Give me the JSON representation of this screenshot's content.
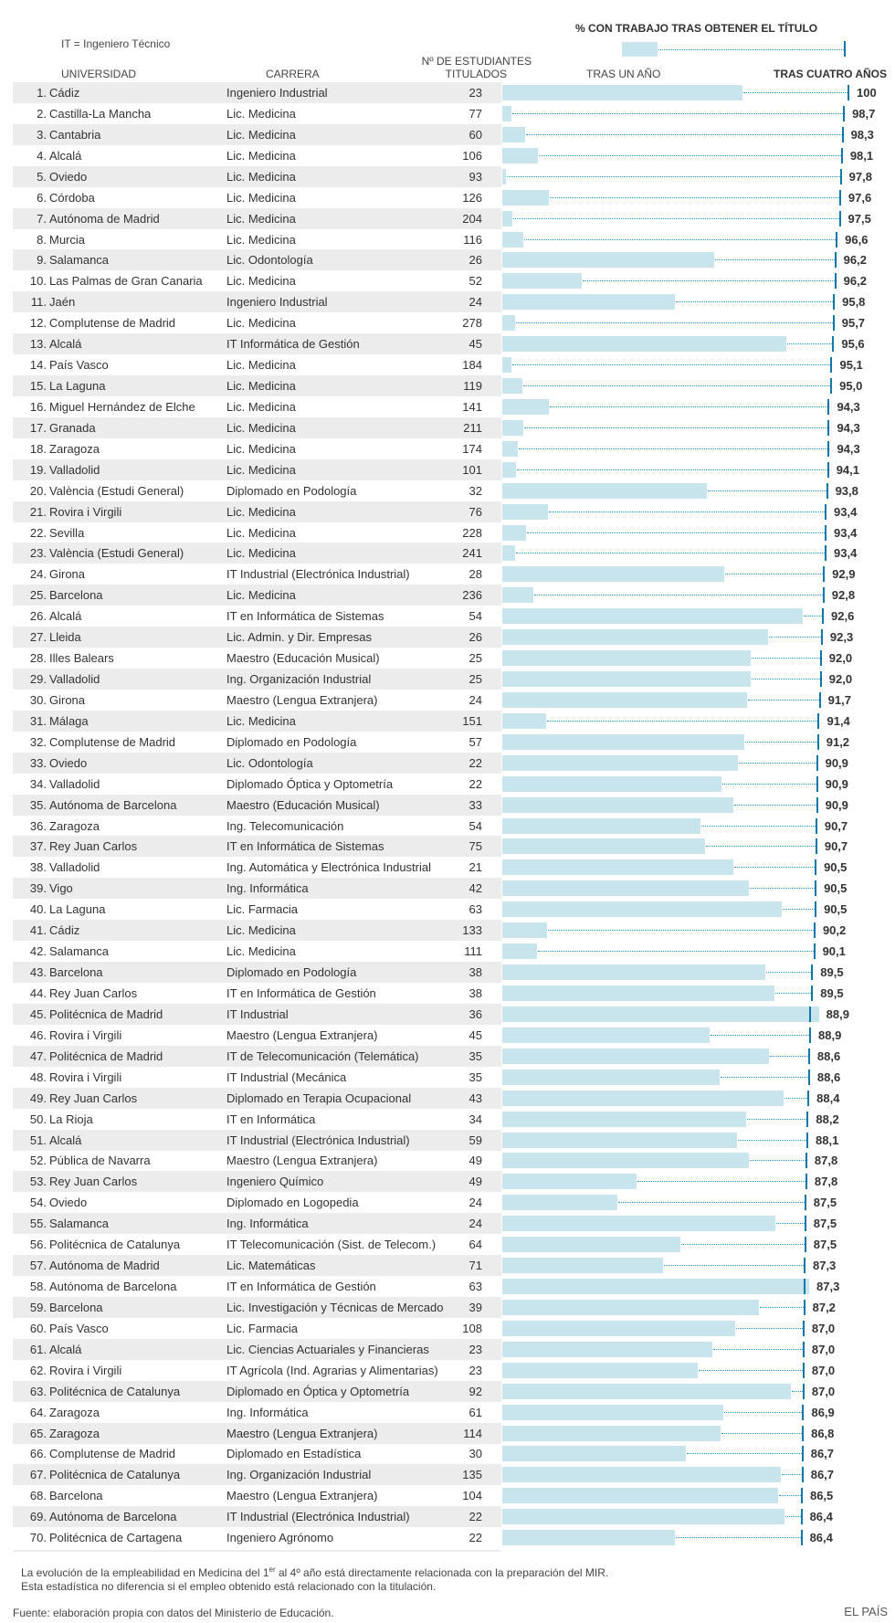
{
  "header": {
    "title": "% CON TRABAJO TRAS OBTENER EL TÍTULO",
    "legend_note": "IT = Ingeniero Técnico",
    "col_universidad": "UNIVERSIDAD",
    "col_carrera": "CARRERA",
    "col_titulados_1": "Nº DE ESTUDIANTES",
    "col_titulados_2": "TITULADOS",
    "col_un_ano": "TRAS UN AÑO",
    "col_cuatro_anos": "TRAS CUATRO AÑOS"
  },
  "colors": {
    "bar_one_year": "#c8e4ec",
    "tick_four_years": "#0f78a8",
    "dotted": "#2196c4",
    "row_band": "#ececec"
  },
  "chart_data": {
    "type": "bar",
    "xlim": [
      0,
      100
    ],
    "columns": [
      "rank",
      "universidad",
      "carrera",
      "titulados",
      "tras_un_ano",
      "tras_cuatro_anos"
    ],
    "rows": [
      [
        "1.",
        "Cádiz",
        "Ingeniero Industrial",
        "23",
        69.6,
        "100"
      ],
      [
        "2.",
        "Castilla-La Mancha",
        "Lic. Medicina",
        "77",
        2.6,
        "98,7"
      ],
      [
        "3.",
        "Cantabria",
        "Lic. Medicina",
        "60",
        6.6,
        "98,3"
      ],
      [
        "4.",
        "Alcalá",
        "Lic. Medicina",
        "106",
        10.3,
        "98,1"
      ],
      [
        "5.",
        "Oviedo",
        "Lic. Medicina",
        "93",
        1.0,
        "97,8"
      ],
      [
        "6.",
        "Córdoba",
        "Lic. Medicina",
        "126",
        13.5,
        "97,6"
      ],
      [
        "7.",
        "Autónoma de Madrid",
        "Lic. Medicina",
        "204",
        2.9,
        "97,5"
      ],
      [
        "8.",
        "Murcia",
        "Lic. Medicina",
        "116",
        6.1,
        "96,6"
      ],
      [
        "9.",
        "Salamanca",
        "Lic. Odontología",
        "26",
        61.4,
        "96,2"
      ],
      [
        "10.",
        "Las Palmas de Gran Canaria",
        "Lic. Medicina",
        "52",
        23.0,
        "96,2"
      ],
      [
        "11.",
        "Jaén",
        "Ingeniero Industrial",
        "24",
        50.0,
        "95,8"
      ],
      [
        "12.",
        "Complutense de Madrid",
        "Lic. Medicina",
        "278",
        3.7,
        "95,7"
      ],
      [
        "13.",
        "Alcalá",
        "IT Informática de Gestión",
        "45",
        82.2,
        "95,6"
      ],
      [
        "14.",
        "País Vasco",
        "Lic. Medicina",
        "184",
        2.6,
        "95,1"
      ],
      [
        "15.",
        "La Laguna",
        "Lic. Medicina",
        "119",
        5.8,
        "95,0"
      ],
      [
        "16.",
        "Miguel Hernández de Elche",
        "Lic. Medicina",
        "141",
        13.5,
        "94,3"
      ],
      [
        "17.",
        "Granada",
        "Lic. Medicina",
        "211",
        6.1,
        "94,3"
      ],
      [
        "18.",
        "Zaragoza",
        "Lic. Medicina",
        "174",
        4.6,
        "94,3"
      ],
      [
        "19.",
        "Valladolid",
        "Lic. Medicina",
        "101",
        4.0,
        "94,1"
      ],
      [
        "20.",
        "València (Estudi General)",
        "Diplomado en Podología",
        "32",
        59.3,
        "93,8"
      ],
      [
        "21.",
        "Rovira i Virgili",
        "Lic. Medicina",
        "76",
        13.2,
        "93,4"
      ],
      [
        "22.",
        "Sevilla",
        "Lic. Medicina",
        "228",
        6.9,
        "93,4"
      ],
      [
        "23.",
        "València (Estudi General)",
        "Lic. Medicina",
        "241",
        3.7,
        "93,4"
      ],
      [
        "24.",
        "Girona",
        "IT Industrial (Electrónica Industrial)",
        "28",
        64.4,
        "92,9"
      ],
      [
        "25.",
        "Barcelona",
        "Lic. Medicina",
        "236",
        8.9,
        "92,8"
      ],
      [
        "26.",
        "Alcalá",
        "IT en Informática de Sistemas",
        "54",
        87.0,
        "92,6"
      ],
      [
        "27.",
        "Lleida",
        "Lic. Admin. y Dir. Empresas",
        "26",
        76.9,
        "92,3"
      ],
      [
        "28.",
        "Illes Balears",
        "Maestro (Educación Musical)",
        "25",
        72.0,
        "92,0"
      ],
      [
        "29.",
        "Valladolid",
        "Ing. Organización Industrial",
        "25",
        72.0,
        "92,0"
      ],
      [
        "30.",
        "Girona",
        "Maestro (Lengua Extranjera)",
        "24",
        70.8,
        "91,7"
      ],
      [
        "31.",
        "Málaga",
        "Lic. Medicina",
        "151",
        12.6,
        "91,4"
      ],
      [
        "32.",
        "Complutense de Madrid",
        "Diplomado en Podología",
        "57",
        70.2,
        "91,2"
      ],
      [
        "33.",
        "Oviedo",
        "Lic. Odontología",
        "22",
        68.3,
        "90,9"
      ],
      [
        "34.",
        "Valladolid",
        "Diplomado Óptica y Optometría",
        "22",
        63.6,
        "90,9"
      ],
      [
        "35.",
        "Autónoma de Barcelona",
        "Maestro (Educación Musical)",
        "33",
        66.8,
        "90,9"
      ],
      [
        "36.",
        "Zaragoza",
        "Ing. Telecomunicación",
        "54",
        57.4,
        "90,7"
      ],
      [
        "37.",
        "Rey Juan Carlos",
        "IT en Informática de Sistemas",
        "75",
        58.7,
        "90,7"
      ],
      [
        "38.",
        "Valladolid",
        "Ing. Automática y Electrónica Industrial",
        "21",
        66.8,
        "90,5"
      ],
      [
        "39.",
        "Vigo",
        "Ing. Informática",
        "42",
        71.4,
        "90,5"
      ],
      [
        "40.",
        "La Laguna",
        "Lic. Farmacia",
        "63",
        81.0,
        "90,5"
      ],
      [
        "41.",
        "Cádiz",
        "Lic. Medicina",
        "133",
        12.9,
        "90,2"
      ],
      [
        "42.",
        "Salamanca",
        "Lic. Medicina",
        "111",
        10.0,
        "90,1"
      ],
      [
        "43.",
        "Barcelona",
        "Diplomado en Podología",
        "38",
        76.3,
        "89,5"
      ],
      [
        "44.",
        "Rey Juan Carlos",
        "IT en Informática de Gestión",
        "38",
        78.9,
        "89,5"
      ],
      [
        "45.",
        "Politécnica de Madrid",
        "IT Industrial",
        "36",
        91.7,
        "88,9"
      ],
      [
        "46.",
        "Rovira i Virgili",
        "Maestro (Lengua Extranjera)",
        "45",
        60.1,
        "88,9"
      ],
      [
        "47.",
        "Politécnica de Madrid",
        "IT de Telecomunicación (Telemática)",
        "35",
        77.2,
        "88,6"
      ],
      [
        "48.",
        "Rovira i Virgili",
        "IT Industrial (Mecánica",
        "35",
        63.0,
        "88,6"
      ],
      [
        "49.",
        "Rey Juan Carlos",
        "Diplomado en Terapia Ocupacional",
        "43",
        81.4,
        "88,4"
      ],
      [
        "50.",
        "La Rioja",
        "IT en Informática",
        "34",
        70.6,
        "88,2"
      ],
      [
        "51.",
        "Alcalá",
        "IT Industrial (Electrónica Industrial)",
        "59",
        67.9,
        "88,1"
      ],
      [
        "52.",
        "Pública de Navarra",
        "Maestro (Lengua Extranjera)",
        "49",
        71.4,
        "87,8"
      ],
      [
        "53.",
        "Rey Juan Carlos",
        "Ingeniero Químico",
        "49",
        38.8,
        "87,8"
      ],
      [
        "54.",
        "Oviedo",
        "Diplomado en Logopedia",
        "24",
        33.3,
        "87,5"
      ],
      [
        "55.",
        "Salamanca",
        "Ing. Informática",
        "24",
        79.2,
        "87,5"
      ],
      [
        "56.",
        "Politécnica de Catalunya",
        "IT Telecomunicación (Sist. de Telecom.)",
        "64",
        51.6,
        "87,5"
      ],
      [
        "57.",
        "Autónoma de Madrid",
        "Lic. Matemáticas",
        "71",
        46.5,
        "87,3"
      ],
      [
        "58.",
        "Autónoma de Barcelona",
        "IT en Informática de Gestión",
        "63",
        88.9,
        "87,3"
      ],
      [
        "59.",
        "Barcelona",
        "Lic. Investigación y Técnicas de Mercado",
        "39",
        74.3,
        "87,2"
      ],
      [
        "60.",
        "País Vasco",
        "Lic. Farmacia",
        "108",
        67.5,
        "87,0"
      ],
      [
        "61.",
        "Alcalá",
        "Lic. Ciencias Actuariales y Financieras",
        "23",
        60.8,
        "87,0"
      ],
      [
        "62.",
        "Rovira i Virgili",
        "IT Agrícola (Ind. Agrarias y Alimentarias)",
        "23",
        56.5,
        "87,0"
      ],
      [
        "63.",
        "Politécnica de Catalunya",
        "Diplomado en Óptica y Optometría",
        "92",
        83.7,
        "87,0"
      ],
      [
        "64.",
        "Zaragoza",
        "Ing. Informática",
        "61",
        63.9,
        "86,9"
      ],
      [
        "65.",
        "Zaragoza",
        "Maestro (Lengua Extranjera)",
        "114",
        63.2,
        "86,8"
      ],
      [
        "66.",
        "Complutense de Madrid",
        "Diplomado en Estadística",
        "30",
        53.3,
        "86,7"
      ],
      [
        "67.",
        "Politécnica de Catalunya",
        "Ing. Organización Industrial",
        "135",
        80.7,
        "86,7"
      ],
      [
        "68.",
        "Barcelona",
        "Maestro (Lengua Extranjera)",
        "104",
        79.8,
        "86,5"
      ],
      [
        "69.",
        "Autónoma de Barcelona",
        "IT Industrial (Electrónica Industrial)",
        "22",
        81.7,
        "86,4"
      ],
      [
        "70.",
        "Politécnica de Cartagena",
        "Ingeniero Agrónomo",
        "22",
        50.0,
        "86,4"
      ]
    ]
  },
  "footer": {
    "note_1a": "La evolución de la empleabilidad en Medicina del 1",
    "note_1sup": "er",
    "note_1b": " al 4º año está directamente relacionada con la preparación del MIR.",
    "note_2": "Esta estadística no diferencia si el empleo obtenido está relacionado con la titulación.",
    "source": "Fuente: elaboración propia con datos del Ministerio de Educación.",
    "brand": "EL PAÍS"
  }
}
